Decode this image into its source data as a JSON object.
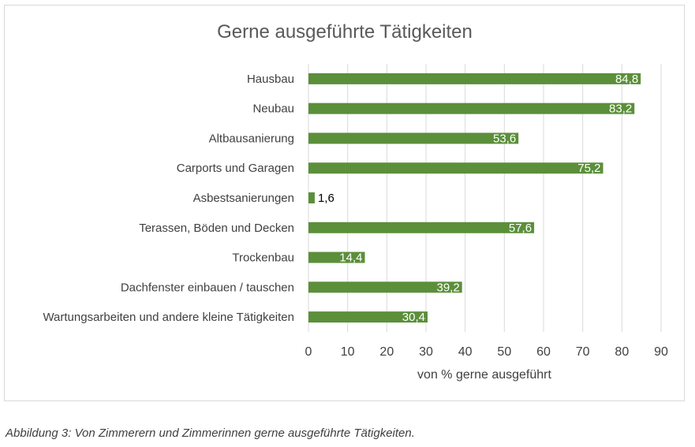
{
  "chart_data": {
    "type": "bar",
    "orientation": "horizontal",
    "title": "Gerne ausgeführte Tätigkeiten",
    "xlabel": "von % gerne ausgeführt",
    "ylabel": "",
    "categories": [
      "Hausbau",
      "Neubau",
      "Altbausanierung",
      "Carports und Garagen",
      "Asbestsanierungen",
      "Terassen, Böden und Decken",
      "Trockenbau",
      "Dachfenster einbauen / tauschen",
      "Wartungsarbeiten und andere kleine Tätigkeiten"
    ],
    "values": [
      84.8,
      83.2,
      53.6,
      75.2,
      1.6,
      57.6,
      14.4,
      39.2,
      30.4
    ],
    "value_labels": [
      "84,8",
      "83,2",
      "53,6",
      "75,2",
      "1,6",
      "57,6",
      "14,4",
      "39,2",
      "30,4"
    ],
    "xlim": [
      0,
      90
    ],
    "x_ticks": [
      0,
      10,
      20,
      30,
      40,
      50,
      60,
      70,
      80,
      90
    ],
    "grid": true,
    "legend": "none",
    "colors": {
      "bar": "#5b8f3a",
      "grid": "#d9d9d9",
      "text": "#404040",
      "title": "#595959"
    }
  },
  "caption": "Abbildung 3: Von Zimmerern und Zimmerinnen gerne ausgeführte Tätigkeiten."
}
